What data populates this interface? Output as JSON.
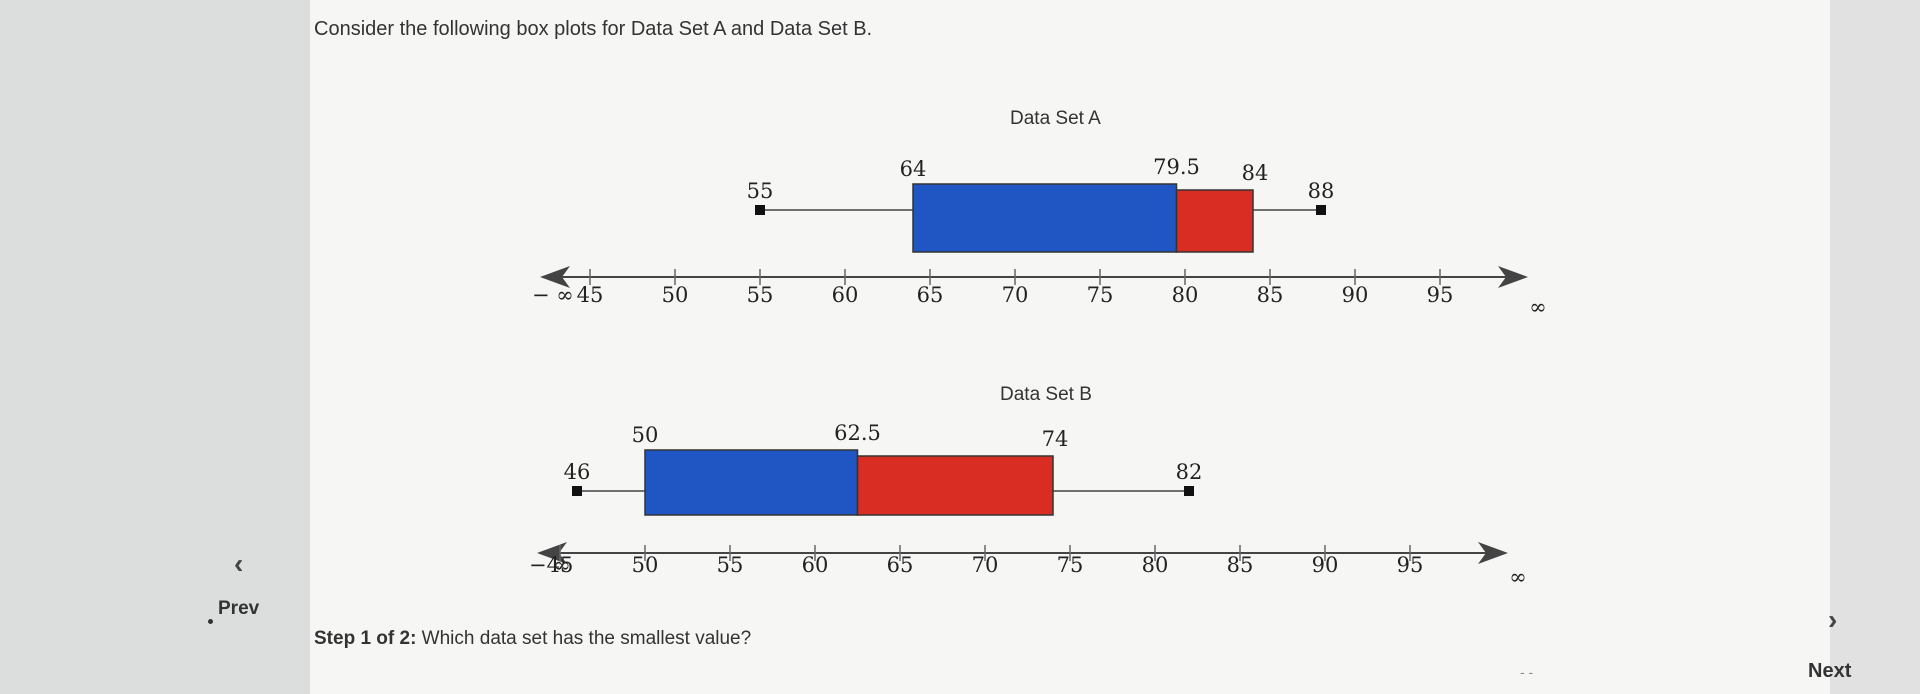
{
  "question": "Consider the following box plots for Data Set A and Data Set B.",
  "step": {
    "prefix": "Step 1 of 2:",
    "text": " Which data set has the smallest value?"
  },
  "nav": {
    "prev_label": "Prev",
    "next_label": "Next",
    "prev_icon": "chevron-left-icon",
    "next_icon": "chevron-right-icon"
  },
  "colors": {
    "box_left": "#1f56c4",
    "box_right": "#d92d23"
  },
  "chart_data": [
    {
      "type": "boxplot",
      "title": "Data Set A",
      "min": 55,
      "q1": 64,
      "median": 79.5,
      "q3": 84,
      "max": 88,
      "axis": {
        "ticks": [
          45,
          50,
          55,
          60,
          65,
          70,
          75,
          80,
          85,
          90,
          95
        ],
        "left_label": "− ∞",
        "right_label": "∞"
      }
    },
    {
      "type": "boxplot",
      "title": "Data Set B",
      "min": 46,
      "q1": 50,
      "median": 62.5,
      "q3": 74,
      "max": 82,
      "axis": {
        "ticks": [
          45,
          50,
          55,
          60,
          65,
          70,
          75,
          80,
          85,
          90,
          95
        ],
        "left_label": "− ∞",
        "right_label": "∞"
      }
    }
  ]
}
